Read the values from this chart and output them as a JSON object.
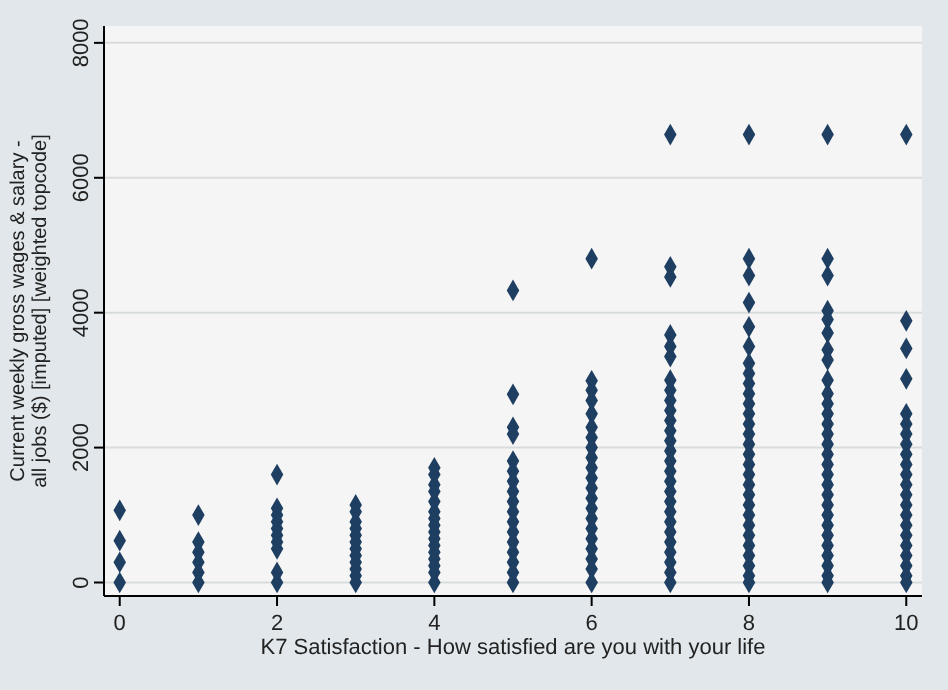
{
  "chart_data": {
    "type": "scatter",
    "xlabel": "K7 Satisfaction - How satisfied are you with your life",
    "ylabel": "Current weekly gross wages & salary - all jobs ($) [imputed] [weighted topcode]",
    "xlim": [
      -0.2,
      10.2
    ],
    "xticks": [
      0,
      2,
      4,
      6,
      8,
      10
    ],
    "ylim": [
      -200,
      8250
    ],
    "yticks": [
      0,
      2000,
      4000,
      6000,
      8000
    ],
    "grid": "y",
    "marker": "diamond",
    "series": [
      {
        "color": "#1e3f61",
        "x": [
          0,
          0,
          0,
          0
        ],
        "values": [
          1070,
          620,
          300,
          0
        ]
      },
      {
        "color": "#1e3f61",
        "x": [
          1,
          1,
          1,
          1,
          1,
          1
        ],
        "values": [
          1000,
          600,
          450,
          300,
          150,
          0
        ]
      },
      {
        "color": "#1e3f61",
        "x": [
          2,
          2,
          2,
          2,
          2,
          2,
          2,
          2,
          2,
          2
        ],
        "values": [
          1600,
          1100,
          1000,
          900,
          800,
          700,
          600,
          500,
          150,
          0
        ]
      },
      {
        "color": "#1e3f61",
        "x": [
          3,
          3,
          3,
          3,
          3,
          3,
          3,
          3,
          3,
          3,
          3,
          3
        ],
        "values": [
          1150,
          1050,
          900,
          800,
          700,
          600,
          500,
          400,
          300,
          200,
          100,
          0
        ]
      },
      {
        "color": "#1e3f61",
        "x": [
          4,
          4,
          4,
          4,
          4,
          4,
          4,
          4,
          4,
          4,
          4,
          4,
          4,
          4,
          4,
          4
        ],
        "values": [
          1700,
          1600,
          1450,
          1350,
          1200,
          1050,
          950,
          850,
          750,
          650,
          550,
          450,
          350,
          250,
          150,
          0
        ]
      },
      {
        "color": "#1e3f61",
        "x": [
          5,
          5,
          5,
          5,
          5,
          5,
          5,
          5,
          5,
          5,
          5,
          5,
          5,
          5,
          5,
          5,
          5
        ],
        "values": [
          4330,
          2790,
          2300,
          2200,
          1800,
          1650,
          1500,
          1350,
          1200,
          1050,
          900,
          750,
          600,
          450,
          300,
          150,
          0
        ]
      },
      {
        "color": "#1e3f61",
        "x": [
          6,
          6,
          6,
          6,
          6,
          6,
          6,
          6,
          6,
          6,
          6,
          6,
          6,
          6,
          6,
          6,
          6,
          6,
          6,
          6,
          6
        ],
        "values": [
          4800,
          2990,
          2850,
          2700,
          2500,
          2300,
          2150,
          2000,
          1850,
          1700,
          1550,
          1400,
          1250,
          1100,
          950,
          800,
          650,
          500,
          350,
          200,
          0
        ]
      },
      {
        "color": "#1e3f61",
        "x": [
          7,
          7,
          7,
          7,
          7,
          7,
          7,
          7,
          7,
          7,
          7,
          7,
          7,
          7,
          7,
          7,
          7,
          7,
          7,
          7,
          7,
          7,
          7,
          7,
          7,
          7,
          7
        ],
        "values": [
          6640,
          4680,
          4530,
          3670,
          3500,
          3350,
          3000,
          2850,
          2700,
          2550,
          2400,
          2250,
          2100,
          1950,
          1800,
          1650,
          1500,
          1350,
          1200,
          1050,
          900,
          750,
          600,
          450,
          300,
          150,
          0
        ]
      },
      {
        "color": "#1e3f61",
        "x": [
          8,
          8,
          8,
          8,
          8,
          8,
          8,
          8,
          8,
          8,
          8,
          8,
          8,
          8,
          8,
          8,
          8,
          8,
          8,
          8,
          8,
          8,
          8,
          8,
          8,
          8,
          8,
          8,
          8
        ],
        "values": [
          6640,
          4800,
          4550,
          4150,
          3790,
          3500,
          3250,
          3100,
          2950,
          2800,
          2650,
          2500,
          2350,
          2200,
          2050,
          1900,
          1750,
          1600,
          1450,
          1300,
          1150,
          1000,
          850,
          700,
          550,
          400,
          250,
          100,
          0
        ]
      },
      {
        "color": "#1e3f61",
        "x": [
          9,
          9,
          9,
          9,
          9,
          9,
          9,
          9,
          9,
          9,
          9,
          9,
          9,
          9,
          9,
          9,
          9,
          9,
          9,
          9,
          9,
          9,
          9,
          9,
          9,
          9,
          9,
          9,
          9
        ],
        "values": [
          6640,
          4800,
          4550,
          4030,
          3900,
          3700,
          3450,
          3300,
          3000,
          2800,
          2650,
          2500,
          2350,
          2200,
          2050,
          1900,
          1750,
          1600,
          1450,
          1300,
          1150,
          1000,
          850,
          700,
          550,
          400,
          250,
          100,
          0
        ]
      },
      {
        "color": "#1e3f61",
        "x": [
          10,
          10,
          10,
          10,
          10,
          10,
          10,
          10,
          10,
          10,
          10,
          10,
          10,
          10,
          10,
          10,
          10,
          10,
          10,
          10,
          10,
          10
        ],
        "values": [
          6640,
          3880,
          3470,
          3020,
          2500,
          2350,
          2200,
          2050,
          1900,
          1750,
          1600,
          1450,
          1300,
          1150,
          1000,
          850,
          700,
          550,
          400,
          250,
          100,
          0
        ]
      }
    ]
  }
}
